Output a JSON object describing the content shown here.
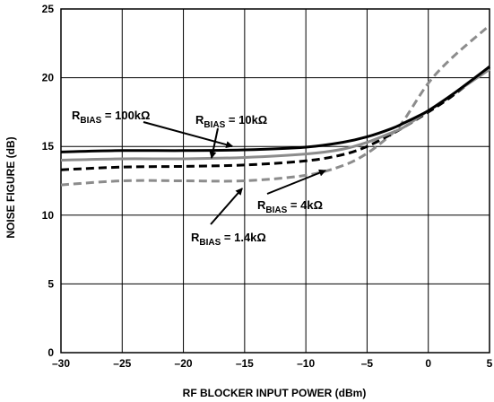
{
  "chart_data": {
    "type": "line",
    "title": "",
    "xlabel": "RF BLOCKER INPUT POWER (dBm)",
    "ylabel": "NOISE FIGURE (dB)",
    "xlim": [
      -30,
      5
    ],
    "ylim": [
      0,
      25
    ],
    "xticks": [
      -30,
      -25,
      -20,
      -15,
      -10,
      -5,
      0,
      5
    ],
    "yticks": [
      0,
      5,
      10,
      15,
      20,
      25
    ],
    "grid": true,
    "x": [
      -30,
      -25,
      -20,
      -15,
      -10,
      -7,
      -5,
      -3,
      -2,
      0,
      2,
      5
    ],
    "series": [
      {
        "name": "RBIAS = 100kΩ",
        "color": "#000000",
        "style": "solid",
        "values": [
          14.6,
          14.7,
          14.7,
          14.75,
          14.95,
          15.3,
          15.7,
          16.3,
          16.7,
          17.6,
          18.8,
          20.8
        ]
      },
      {
        "name": "RBIAS = 10kΩ",
        "color": "#8c8c8c",
        "style": "solid",
        "values": [
          14.0,
          14.1,
          14.1,
          14.2,
          14.45,
          14.8,
          15.3,
          16.0,
          16.4,
          17.6,
          18.8,
          20.6
        ]
      },
      {
        "name": "RBIAS = 4kΩ",
        "color": "#000000",
        "style": "dashed",
        "values": [
          13.3,
          13.5,
          13.55,
          13.65,
          13.95,
          14.4,
          15.0,
          15.9,
          16.4,
          17.5,
          18.7,
          20.8
        ]
      },
      {
        "name": "RBIAS = 1.4kΩ",
        "color": "#8c8c8c",
        "style": "dashed",
        "values": [
          12.2,
          12.5,
          12.5,
          12.5,
          12.9,
          13.6,
          14.5,
          15.9,
          16.9,
          19.6,
          21.5,
          23.8
        ]
      }
    ],
    "annotations": [
      {
        "main": "R",
        "sub": "BIAS",
        "rest": " = 100kΩ"
      },
      {
        "main": "R",
        "sub": "BIAS",
        "rest": " = 10kΩ"
      },
      {
        "main": "R",
        "sub": "BIAS",
        "rest": " = 4kΩ"
      },
      {
        "main": "R",
        "sub": "BIAS",
        "rest": " = 1.4kΩ"
      }
    ]
  }
}
